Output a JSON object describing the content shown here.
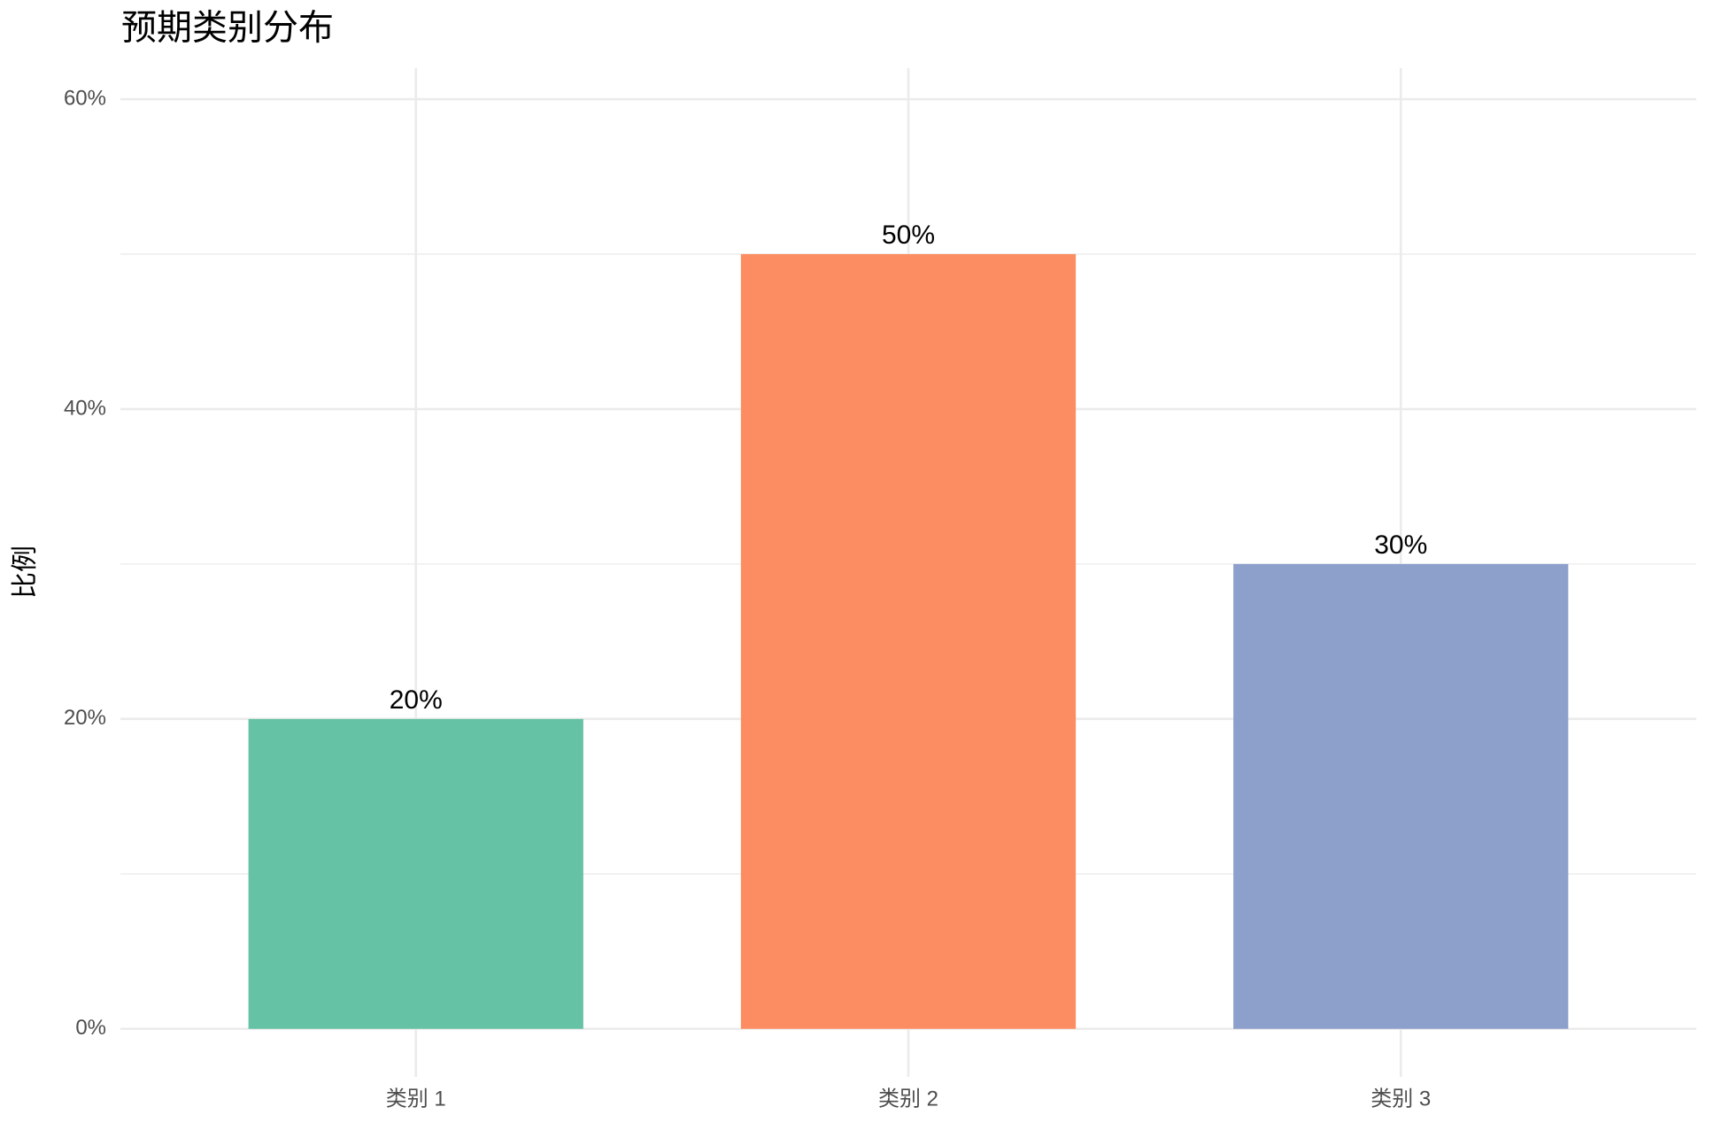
{
  "chart_data": {
    "type": "bar",
    "title": "预期类别分布",
    "y_label": "比例",
    "categories": [
      "类别 1",
      "类别 2",
      "类别 3"
    ],
    "values": [
      20,
      50,
      30
    ],
    "value_labels": [
      "20%",
      "50%",
      "30%"
    ],
    "colors": [
      "#66c2a5",
      "#fc8d62",
      "#8da0cb"
    ],
    "ylim": [
      -3.1,
      62
    ],
    "yticks": [
      {
        "value": 0,
        "label": "0%"
      },
      {
        "value": 20,
        "label": "20%"
      },
      {
        "value": 40,
        "label": "40%"
      },
      {
        "value": 60,
        "label": "60%"
      }
    ],
    "minor_yticks": [
      10,
      30,
      50
    ],
    "grid": true
  }
}
